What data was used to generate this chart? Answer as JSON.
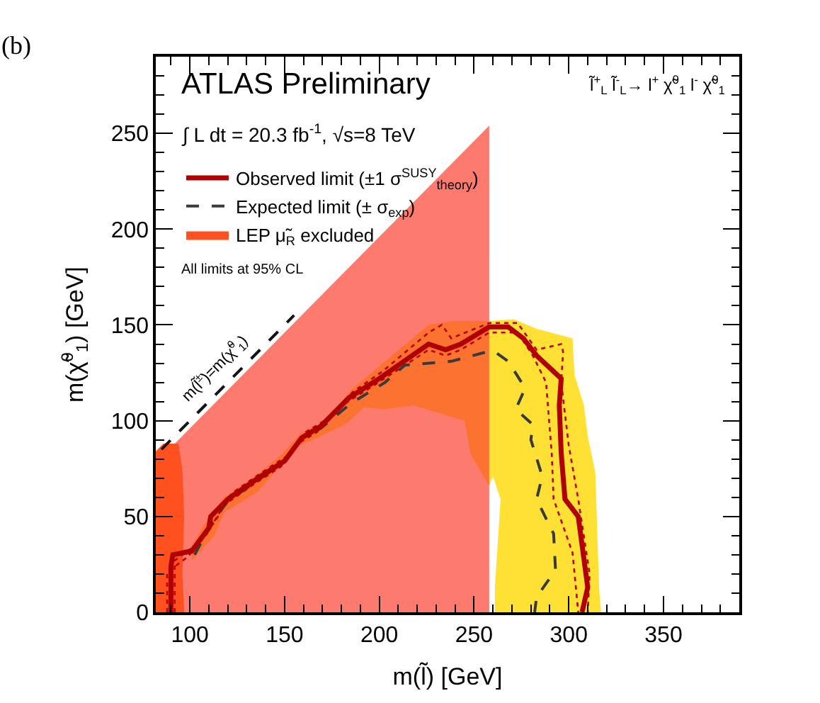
{
  "chart_data": {
    "type": "line",
    "xlabel": "m(l̃) [GeV]",
    "ylabel": "m(χ̃$^{0}$$_{1}$) [GeV]",
    "xlim": [
      82,
      390
    ],
    "ylim": [
      0,
      290
    ],
    "xticks": [
      100,
      150,
      200,
      250,
      300,
      350
    ],
    "yticks": [
      0,
      50,
      100,
      150,
      200,
      250
    ],
    "legend": "top left",
    "series": [
      {
        "type": "area",
        "color": "#ffe135",
        "x": [
          101,
          113,
          118,
          136,
          156,
          167,
          182,
          192,
          203,
          218,
          245,
          248,
          258,
          260,
          264,
          261,
          261,
          317,
          316,
          314,
          310,
          308,
          303,
          302,
          283,
          271,
          258,
          238,
          226,
          203,
          185,
          172,
          159,
          149,
          136,
          118,
          109,
          101
        ],
        "values": [
          27,
          40,
          52,
          63,
          86,
          91,
          98,
          107,
          106,
          108,
          100,
          83,
          66,
          71,
          59,
          13,
          0,
          0,
          13,
          73,
          92,
          108,
          124,
          143,
          148,
          153,
          152,
          152,
          150,
          131,
          116,
          100,
          94,
          83,
          72,
          60,
          48,
          35
        ]
      },
      {
        "type": "area",
        "color": "#fb4330",
        "x": [
          82,
          82,
          258,
          258
        ],
        "values": [
          0,
          78,
          254,
          0
        ]
      },
      {
        "type": "area",
        "name": "LEP μ̃$_{R}$ excluded",
        "color": "#ff5020",
        "x": [
          82,
          97,
          96,
          97,
          96,
          94,
          86,
          82
        ],
        "values": [
          0,
          0,
          20,
          50,
          75,
          88,
          88,
          84
        ]
      },
      {
        "line_style": "dashed",
        "color": "#141414",
        "x": [
          85,
          100,
          115,
          130,
          145,
          155
        ],
        "values": [
          85,
          100,
          115,
          130,
          145,
          155
        ]
      },
      {
        "line_style": "dotted",
        "color": "#c00000",
        "x": [
          92,
          92,
          103,
          113,
          122,
          138,
          152,
          161,
          171,
          186,
          202,
          226,
          233,
          238,
          258,
          273,
          283,
          296,
          297,
          296,
          300,
          305,
          311,
          310
        ],
        "values": [
          0,
          27,
          35,
          47,
          62,
          73,
          82,
          94,
          100,
          115,
          126,
          146,
          150,
          143,
          151,
          151,
          137,
          140,
          136,
          120,
          87,
          59,
          20,
          0
        ]
      },
      {
        "line_style": "dotted",
        "color": "#c00000",
        "x": [
          88,
          88,
          99,
          109,
          118,
          134,
          148,
          157,
          167,
          182,
          198,
          226,
          235,
          243,
          258,
          273,
          281,
          288,
          291,
          292,
          302,
          305
        ],
        "values": [
          0,
          21,
          29,
          41,
          56,
          67,
          76,
          88,
          94,
          109,
          119,
          137,
          134,
          137,
          146,
          146,
          134,
          120,
          83,
          59,
          31,
          0
        ]
      },
      {
        "name": "Expected limit (± σ$_{exp}$)",
        "line_style": "dashed",
        "color": "#3a3a3a",
        "x": [
          102.5,
          111.5,
          120,
          136,
          149,
          159,
          169,
          185,
          203,
          213.5,
          238,
          257,
          261,
          268,
          277,
          272,
          281,
          280,
          286,
          283,
          292,
          293,
          283,
          282
        ],
        "values": [
          30,
          47,
          58,
          69,
          78,
          91,
          96,
          109,
          120,
          129,
          131,
          136,
          136,
          131,
          117,
          106,
          98,
          90,
          71,
          59,
          41,
          22,
          8,
          0
        ]
      },
      {
        "name": "Observed limit (±1 σ$^{SUSY}$$_{theory}$)",
        "line_style": "solid",
        "color": "#b00000",
        "x": [
          90,
          90,
          91,
          101,
          110,
          111,
          120,
          136,
          150,
          159,
          169,
          184,
          200,
          226,
          235,
          243,
          258,
          268,
          276,
          283,
          296,
          295,
          296,
          298,
          305,
          310,
          307
        ],
        "values": [
          0,
          24,
          30,
          32,
          44,
          50,
          59,
          70,
          79,
          91,
          97,
          112,
          122,
          140,
          137,
          140,
          149,
          149,
          143,
          134,
          122,
          108,
          83,
          59,
          50,
          13,
          0
        ]
      }
    ],
    "annotations": [
      "ATLAS Preliminary",
      "∫ L dt = 20.3 fb$^{-1}$, √s=8 TeV",
      "All limits at 95% CL",
      "l̃$^{+}$$_{L}$ l̃$^{-}$$_{L}$→ l$^{+}$ χ̃$^{0}$$_{1}$ l$^{-}$ χ̃$^{0}$$_{1}$",
      "(b)",
      "m(l̃$^{±}$)=m(χ̃$^{0}$$_{1}$)"
    ]
  }
}
